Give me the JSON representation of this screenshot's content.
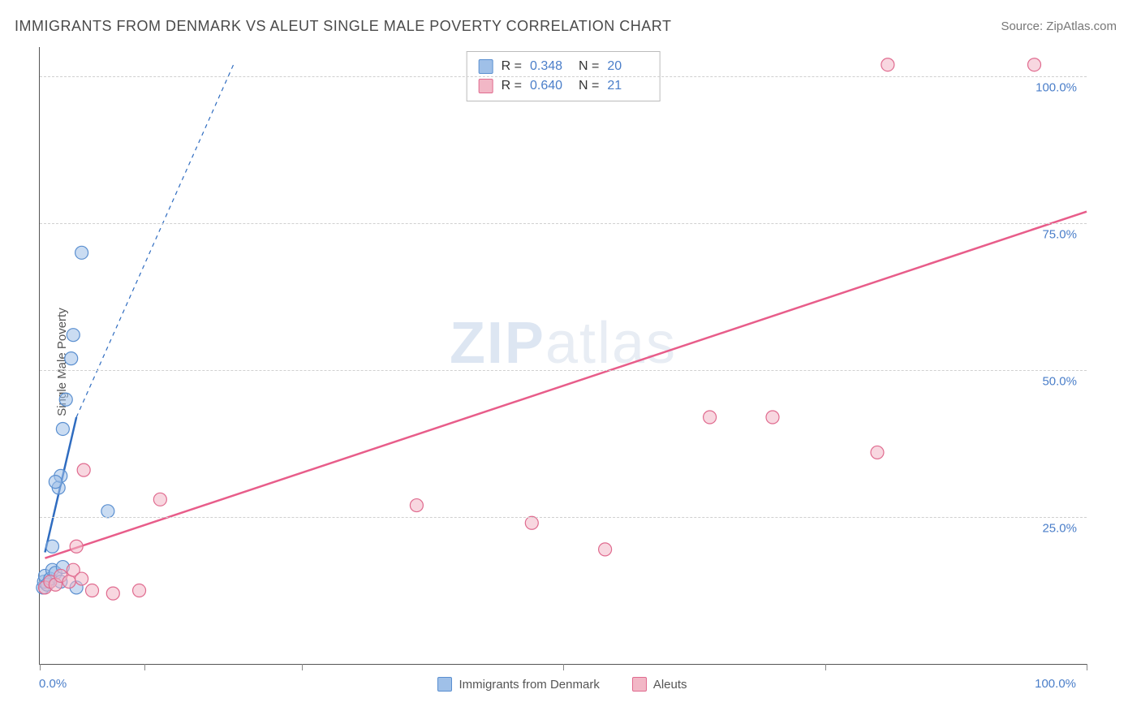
{
  "title": "IMMIGRANTS FROM DENMARK VS ALEUT SINGLE MALE POVERTY CORRELATION CHART",
  "source": "Source: ZipAtlas.com",
  "ylabel": "Single Male Poverty",
  "watermark_zip": "ZIP",
  "watermark_atlas": "atlas",
  "chart": {
    "type": "scatter",
    "xlim": [
      0,
      100
    ],
    "ylim": [
      0,
      105
    ],
    "x_ticks": [
      0,
      10,
      25,
      50,
      75,
      100
    ],
    "x_tick_labels_shown": {
      "left": "0.0%",
      "right": "100.0%"
    },
    "y_gridlines": [
      25,
      50,
      75,
      100
    ],
    "y_tick_labels": [
      "25.0%",
      "50.0%",
      "75.0%",
      "100.0%"
    ],
    "background_color": "#ffffff",
    "grid_color": "#d0d0d0",
    "axis_color": "#555555",
    "tick_label_color": "#4a7ec9",
    "marker_radius": 8,
    "marker_stroke_width": 1.2,
    "series": [
      {
        "name": "Immigrants from Denmark",
        "fill": "#9fc0e8",
        "fill_opacity": 0.55,
        "stroke": "#5a8fd0",
        "trend_color": "#2f6cc0",
        "trend_width": 2.5,
        "trend_dashed_extension": true,
        "R": 0.348,
        "N": 20,
        "trend_start": [
          0.5,
          19
        ],
        "trend_end_solid": [
          3.5,
          42
        ],
        "trend_end_dashed": [
          18.5,
          102
        ],
        "points": [
          [
            0.3,
            13
          ],
          [
            0.4,
            14
          ],
          [
            0.5,
            15
          ],
          [
            0.7,
            13.5
          ],
          [
            1.0,
            14.5
          ],
          [
            1.2,
            16
          ],
          [
            1.5,
            15.5
          ],
          [
            2.0,
            14
          ],
          [
            2.2,
            16.5
          ],
          [
            3.5,
            13
          ],
          [
            1.2,
            20
          ],
          [
            1.8,
            30
          ],
          [
            2.0,
            32
          ],
          [
            1.5,
            31
          ],
          [
            2.2,
            40
          ],
          [
            2.5,
            45
          ],
          [
            3.0,
            52
          ],
          [
            3.2,
            56
          ],
          [
            4.0,
            70
          ],
          [
            6.5,
            26
          ]
        ]
      },
      {
        "name": "Aleuts",
        "fill": "#f2b7c6",
        "fill_opacity": 0.55,
        "stroke": "#e06b8f",
        "trend_color": "#e85d8a",
        "trend_width": 2.5,
        "trend_dashed_extension": false,
        "R": 0.64,
        "N": 21,
        "trend_start": [
          0.5,
          18
        ],
        "trend_end_solid": [
          100,
          77
        ],
        "points": [
          [
            0.5,
            13
          ],
          [
            1.0,
            14
          ],
          [
            1.5,
            13.5
          ],
          [
            2.0,
            15
          ],
          [
            2.8,
            14
          ],
          [
            3.2,
            16
          ],
          [
            4.0,
            14.5
          ],
          [
            5.0,
            12.5
          ],
          [
            7.0,
            12
          ],
          [
            9.5,
            12.5
          ],
          [
            3.5,
            20
          ],
          [
            4.2,
            33
          ],
          [
            11.5,
            28
          ],
          [
            36,
            27
          ],
          [
            47,
            24
          ],
          [
            54,
            19.5
          ],
          [
            64,
            42
          ],
          [
            70,
            42
          ],
          [
            80,
            36
          ],
          [
            81,
            102
          ],
          [
            95,
            102
          ]
        ]
      }
    ],
    "top_legend": {
      "border_color": "#bbbbbb",
      "rows": [
        {
          "swatch_fill": "#9fc0e8",
          "swatch_stroke": "#5a8fd0",
          "r_label": "R =",
          "r_val": "0.348",
          "n_label": "N =",
          "n_val": "20"
        },
        {
          "swatch_fill": "#f2b7c6",
          "swatch_stroke": "#e06b8f",
          "r_label": "R =",
          "r_val": "0.640",
          "n_label": "N =",
          "n_val": "21"
        }
      ]
    },
    "bottom_legend": [
      {
        "swatch_fill": "#9fc0e8",
        "swatch_stroke": "#5a8fd0",
        "label": "Immigrants from Denmark"
      },
      {
        "swatch_fill": "#f2b7c6",
        "swatch_stroke": "#e06b8f",
        "label": "Aleuts"
      }
    ]
  }
}
